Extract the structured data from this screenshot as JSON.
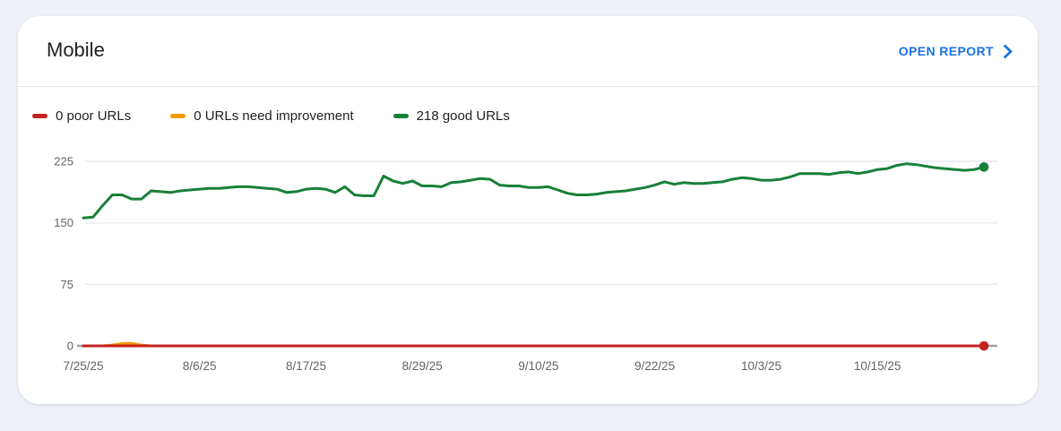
{
  "page": {
    "background": "#edf0f6"
  },
  "colors": {
    "link": "#1a73e8",
    "poor": "#c5221f",
    "needs_improvement": "#f29900",
    "good": "#188038",
    "axis_baseline": "#9aa0a6",
    "gridline": "#e8eaed",
    "text_primary": "#202124",
    "text_secondary": "#5f6368"
  },
  "card": {
    "title": "Mobile",
    "open_report_label": "OPEN REPORT"
  },
  "legend": [
    {
      "label": "0 poor URLs",
      "color": "#c5221f"
    },
    {
      "label": "0 URLs need improvement",
      "color": "#f29900"
    },
    {
      "label": "218 good URLs",
      "color": "#188038"
    }
  ],
  "chart_data": {
    "type": "line",
    "title": "Mobile Core Web Vitals URL counts over time",
    "xlabel": "",
    "ylabel": "",
    "ylim": [
      0,
      225
    ],
    "y_ticks": [
      0,
      75,
      150,
      225
    ],
    "grid": "horizontal",
    "legend_position": "top",
    "x_unit": "day",
    "x_ticks": [
      {
        "label": "7/25/25",
        "day": 0
      },
      {
        "label": "8/6/25",
        "day": 12
      },
      {
        "label": "8/17/25",
        "day": 23
      },
      {
        "label": "8/29/25",
        "day": 35
      },
      {
        "label": "9/10/25",
        "day": 47
      },
      {
        "label": "9/22/25",
        "day": 59
      },
      {
        "label": "10/3/25",
        "day": 70
      },
      {
        "label": "10/15/25",
        "day": 82
      }
    ],
    "series": [
      {
        "name": "needs_improvement",
        "legend": "0 URLs need improvement",
        "color": "#f29900",
        "end_dot": false,
        "values": [
          0,
          0,
          0,
          1,
          3,
          3,
          1,
          0,
          0,
          0,
          0,
          0,
          0,
          0,
          0,
          0,
          0,
          0,
          0,
          0,
          0,
          0,
          0,
          0,
          0,
          0,
          0,
          0,
          0,
          0,
          0,
          0,
          0,
          0,
          0,
          0,
          0,
          0,
          0,
          0,
          0,
          0,
          0,
          0,
          0,
          0,
          0,
          0,
          0,
          0,
          0,
          0,
          0,
          0,
          0,
          0,
          0,
          0,
          0,
          0,
          0,
          0,
          0,
          0,
          0,
          0,
          0,
          0,
          0,
          0,
          0,
          0,
          0,
          0,
          0,
          0,
          0,
          0,
          0,
          0,
          0,
          0,
          0,
          0,
          0,
          0,
          0,
          0,
          0,
          0,
          0,
          0,
          0,
          0
        ]
      },
      {
        "name": "poor",
        "legend": "0 poor URLs",
        "color": "#c5221f",
        "end_dot": true,
        "values": [
          0,
          0,
          0,
          0,
          0,
          0,
          0,
          0,
          0,
          0,
          0,
          0,
          0,
          0,
          0,
          0,
          0,
          0,
          0,
          0,
          0,
          0,
          0,
          0,
          0,
          0,
          0,
          0,
          0,
          0,
          0,
          0,
          0,
          0,
          0,
          0,
          0,
          0,
          0,
          0,
          0,
          0,
          0,
          0,
          0,
          0,
          0,
          0,
          0,
          0,
          0,
          0,
          0,
          0,
          0,
          0,
          0,
          0,
          0,
          0,
          0,
          0,
          0,
          0,
          0,
          0,
          0,
          0,
          0,
          0,
          0,
          0,
          0,
          0,
          0,
          0,
          0,
          0,
          0,
          0,
          0,
          0,
          0,
          0,
          0,
          0,
          0,
          0,
          0,
          0,
          0,
          0,
          0,
          0
        ]
      },
      {
        "name": "good",
        "legend": "218 good URLs",
        "color": "#188038",
        "end_dot": true,
        "values": [
          156,
          157,
          171,
          184,
          184,
          179,
          179,
          189,
          188,
          187,
          189,
          190,
          191,
          192,
          192,
          193,
          194,
          194,
          193,
          192,
          191,
          187,
          188,
          191,
          192,
          191,
          187,
          194,
          184,
          183,
          183,
          207,
          201,
          198,
          201,
          195,
          195,
          194,
          199,
          200,
          202,
          204,
          203,
          196,
          195,
          195,
          193,
          193,
          194,
          190,
          186,
          184,
          184,
          185,
          187,
          188,
          189,
          191,
          193,
          196,
          200,
          197,
          199,
          198,
          198,
          199,
          200,
          203,
          205,
          204,
          202,
          202,
          203,
          206,
          210,
          210,
          210,
          209,
          211,
          212,
          210,
          212,
          215,
          216,
          220,
          222,
          221,
          219,
          217,
          216,
          215,
          214,
          215,
          218
        ]
      }
    ],
    "latest_values": {
      "good": 218,
      "needs_improvement": 0,
      "poor": 0
    }
  }
}
